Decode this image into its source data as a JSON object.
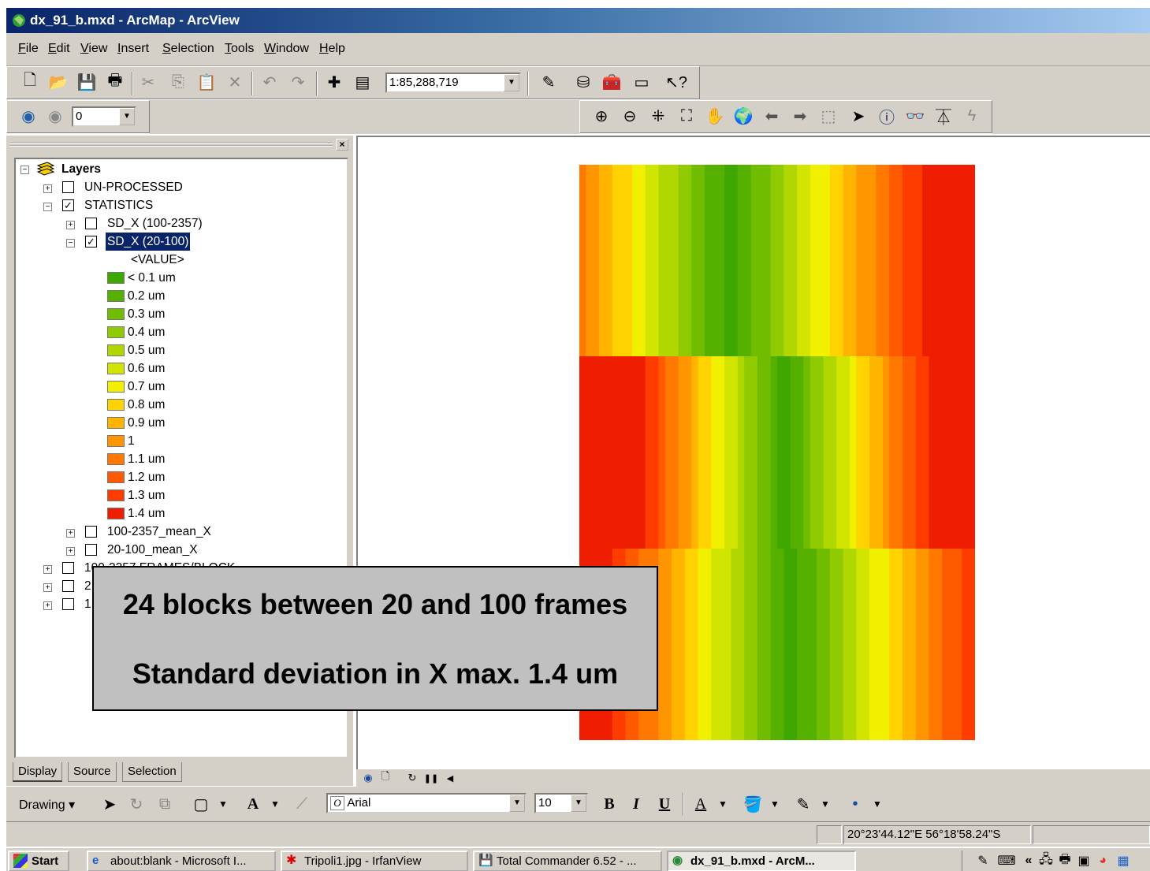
{
  "window": {
    "title": "dx_91_b.mxd - ArcMap - ArcView"
  },
  "menu": {
    "items": [
      "File",
      "Edit",
      "View",
      "Insert",
      "Selection",
      "Tools",
      "Window",
      "Help"
    ]
  },
  "toolbar": {
    "scale_value": "1:85,288,719",
    "rotation_value": "0"
  },
  "toc": {
    "root_label": "Layers",
    "rows": {
      "unprocessed": "UN-PROCESSED",
      "statistics": "STATISTICS",
      "sd_x_100_2357": "SD_X (100-2357)",
      "sd_x_20_100": "SD_X (20-100)",
      "value_header": "<VALUE>",
      "mean_100_2357": "100-2357_mean_X",
      "mean_20_100": "20-100_mean_X",
      "frames_block_partial": "100-2357 FRAMES/BLOCK",
      "row_21_partial": "2",
      "row_22_partial": "1"
    },
    "legend": [
      {
        "label": "< 0.1 um",
        "color": "#3fa800"
      },
      {
        "label": "0.2 um",
        "color": "#56b000"
      },
      {
        "label": "0.3 um",
        "color": "#70bd00"
      },
      {
        "label": "0.4 um",
        "color": "#8fcb00"
      },
      {
        "label": "0.5 um",
        "color": "#b0d800"
      },
      {
        "label": "0.6 um",
        "color": "#d2e500"
      },
      {
        "label": "0.7 um",
        "color": "#f0f000"
      },
      {
        "label": "0.8 um",
        "color": "#ffd200"
      },
      {
        "label": "0.9 um",
        "color": "#ffb400"
      },
      {
        "label": "1",
        "color": "#ff9600"
      },
      {
        "label": "1.1 um",
        "color": "#ff7800"
      },
      {
        "label": "1.2 um",
        "color": "#ff5a00"
      },
      {
        "label": "1.3 um",
        "color": "#ff3c00"
      },
      {
        "label": "1.4 um",
        "color": "#f01e00"
      }
    ],
    "tabs": [
      "Display",
      "Source",
      "Selection"
    ]
  },
  "drawing": {
    "menu_label": "Drawing",
    "font_name": "Arial",
    "font_size": "10"
  },
  "status": {
    "coordinates": "20°23'44.12\"E  56°18'58.24\"S"
  },
  "taskbar": {
    "start_label": "Start",
    "buttons": [
      "about:blank - Microsoft I...",
      "Tripoli1.jpg - IrfanView",
      "Total Commander 6.52 - ...",
      "dx_91_b.mxd - ArcM..."
    ]
  },
  "callout": {
    "line1": "24 blocks between 20 and 100 frames",
    "line2": "Standard deviation in X max. 1.4 um"
  }
}
